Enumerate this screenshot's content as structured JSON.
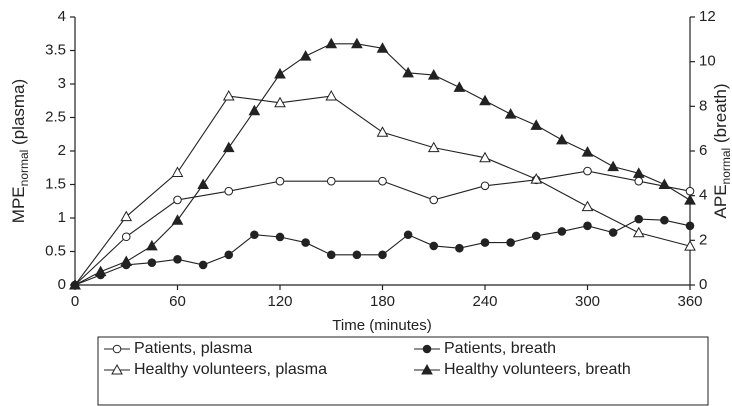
{
  "chart_data": {
    "type": "line",
    "xlabel": "Time (minutes)",
    "ylabel": [
      "MPE",
      "normal",
      " (plasma)"
    ],
    "y2label": [
      "APE",
      "normal",
      " (breath)"
    ],
    "xlim": [
      0,
      360
    ],
    "xticks": [
      0,
      60,
      120,
      180,
      240,
      300,
      360
    ],
    "ylim": [
      0,
      4
    ],
    "yticks": [
      0,
      0.5,
      1,
      1.5,
      2,
      2.5,
      3,
      3.5,
      4
    ],
    "y2lim": [
      0,
      12
    ],
    "y2ticks": [
      0,
      2,
      4,
      6,
      8,
      10,
      12
    ],
    "grid": false,
    "legend": "bottom",
    "series": [
      {
        "name": "Patients, plasma",
        "color": "#222222",
        "marker": "circle-open",
        "x": [
          0,
          30,
          60,
          90,
          120,
          150,
          180,
          210,
          240,
          270,
          300,
          330,
          360
        ],
        "values": [
          0,
          0.72,
          1.27,
          1.4,
          1.55,
          1.55,
          1.55,
          1.27,
          1.48,
          1.57,
          1.7,
          1.55,
          1.4
        ]
      },
      {
        "name": "Patients, breath",
        "color": "#222222",
        "marker": "circle-filled",
        "axis": "y2",
        "x": [
          0,
          15,
          30,
          45,
          60,
          75,
          90,
          105,
          120,
          135,
          150,
          165,
          180,
          195,
          210,
          225,
          240,
          255,
          270,
          285,
          300,
          315,
          330,
          345,
          360
        ],
        "values": [
          0,
          0.45,
          0.9,
          1.0,
          1.15,
          0.9,
          1.35,
          2.25,
          2.15,
          1.9,
          1.35,
          1.35,
          1.35,
          2.25,
          1.75,
          1.65,
          1.9,
          1.9,
          2.2,
          2.4,
          2.65,
          2.35,
          2.95,
          2.9,
          2.65
        ]
      },
      {
        "name": "Healthy volunteers, plasma",
        "color": "#222222",
        "marker": "triangle-open",
        "x": [
          0,
          30,
          60,
          90,
          120,
          150,
          180,
          210,
          240,
          270,
          300,
          330,
          360
        ],
        "values": [
          0,
          1.02,
          1.68,
          2.82,
          2.72,
          2.82,
          2.28,
          2.05,
          1.9,
          1.58,
          1.17,
          0.78,
          0.58
        ]
      },
      {
        "name": "Healthy volunteers, breath",
        "color": "#222222",
        "marker": "triangle-filled",
        "axis": "y2",
        "x": [
          0,
          15,
          30,
          45,
          60,
          75,
          90,
          105,
          120,
          135,
          150,
          165,
          180,
          195,
          210,
          225,
          240,
          255,
          270,
          285,
          300,
          315,
          330,
          345,
          360
        ],
        "values": [
          0,
          0.6,
          1.05,
          1.75,
          2.9,
          4.5,
          6.15,
          7.8,
          9.45,
          10.25,
          10.8,
          10.8,
          10.6,
          9.5,
          9.4,
          8.85,
          8.25,
          7.65,
          7.15,
          6.5,
          5.95,
          5.3,
          5.0,
          4.5,
          3.8
        ]
      }
    ]
  }
}
